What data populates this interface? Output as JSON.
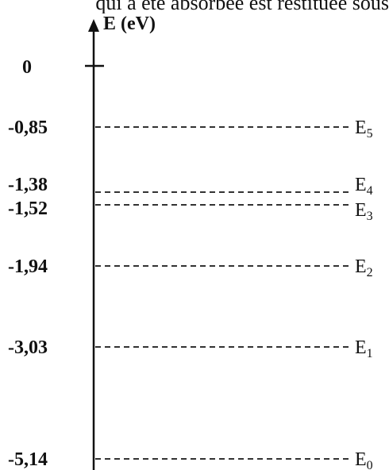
{
  "header_text": "qui a été absorbée est restituée sous",
  "axis": {
    "label": "E (eV)",
    "zero_label": "0"
  },
  "levels": [
    {
      "value": -0.85,
      "value_label": "-0,85",
      "name": "E",
      "sub": "5"
    },
    {
      "value": -1.38,
      "value_label": "-1,38",
      "name": "E",
      "sub": "4"
    },
    {
      "value": -1.52,
      "value_label": "-1,52",
      "name": "E",
      "sub": "3"
    },
    {
      "value": -1.94,
      "value_label": "-1,94",
      "name": "E",
      "sub": "2"
    },
    {
      "value": -3.03,
      "value_label": "-3,03",
      "name": "E",
      "sub": "1"
    },
    {
      "value": -5.14,
      "value_label": "-5,14",
      "name": "E",
      "sub": "0"
    }
  ],
  "colors": {
    "ink": "#111111",
    "dash": "#333333"
  }
}
